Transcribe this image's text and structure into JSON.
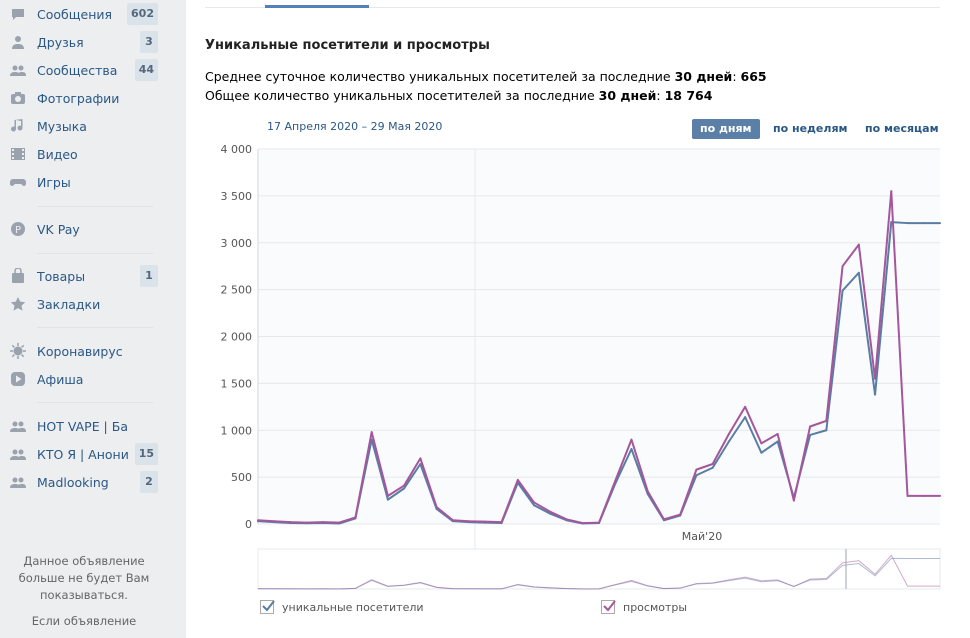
{
  "sidebar": {
    "items": [
      {
        "icon": "chat-bubble-icon",
        "label": "Сообщения",
        "count": "602"
      },
      {
        "icon": "user-icon",
        "label": "Друзья",
        "count": "3"
      },
      {
        "icon": "users-icon",
        "label": "Сообщества",
        "count": "44"
      },
      {
        "icon": "camera-icon",
        "label": "Фотографии",
        "count": ""
      },
      {
        "icon": "music-note-icon",
        "label": "Музыка",
        "count": ""
      },
      {
        "icon": "film-icon",
        "label": "Видео",
        "count": ""
      },
      {
        "icon": "gamepad-icon",
        "label": "Игры",
        "count": ""
      },
      {
        "icon": "vkpay-icon",
        "label": "VK Pay",
        "count": ""
      },
      {
        "icon": "bag-icon",
        "label": "Товары",
        "count": "1"
      },
      {
        "icon": "star-icon",
        "label": "Закладки",
        "count": ""
      },
      {
        "icon": "virus-icon",
        "label": "Коронавирус",
        "count": ""
      },
      {
        "icon": "play-icon",
        "label": "Афиша",
        "count": ""
      },
      {
        "icon": "users-icon",
        "label": "HOT VAPE | Бара...",
        "count": ""
      },
      {
        "icon": "users-icon",
        "label": "КТО Я | Анони...",
        "count": "15"
      },
      {
        "icon": "users-icon",
        "label": "Madlooking",
        "count": "2"
      }
    ],
    "ad_hidden_text": "Данное объявление больше не будет Вам показываться.",
    "ad_more_text": "Если объявление"
  },
  "main": {
    "section_title": "Уникальные посетители и просмотры",
    "stat1_prefix": "Среднее суточное количество уникальных посетителей за последние ",
    "stat1_days": "30 дней",
    "stat1_value": "665",
    "stat2_prefix": "Общее количество уникальных посетителей за последние ",
    "stat2_days": "30 дней",
    "stat2_value": "18 764",
    "date_range": "17 Апреля 2020 – 29 Мая 2020",
    "period_buttons": [
      "по дням",
      "по неделям",
      "по месяцам"
    ],
    "legend": {
      "unique": "уникальные посетители",
      "views": "просмотры"
    },
    "colors": {
      "unique": "#597da3",
      "views": "#a4579d",
      "accent": "#5181b8"
    }
  },
  "chart_data": {
    "type": "line",
    "x_axis_label": "Май'20",
    "y_ticks": [
      "4 000",
      "3 500",
      "3 000",
      "2 500",
      "2 000",
      "1 500",
      "1 000",
      "500",
      "0"
    ],
    "ylim": [
      0,
      4000
    ],
    "x": [
      "17.04",
      "18.04",
      "19.04",
      "20.04",
      "21.04",
      "22.04",
      "23.04",
      "24.04",
      "25.04",
      "26.04",
      "27.04",
      "28.04",
      "29.04",
      "30.04",
      "01.05",
      "02.05",
      "03.05",
      "04.05",
      "05.05",
      "06.05",
      "07.05",
      "08.05",
      "09.05",
      "10.05",
      "11.05",
      "12.05",
      "13.05",
      "14.05",
      "15.05",
      "16.05",
      "17.05",
      "18.05",
      "19.05",
      "20.05",
      "21.05",
      "22.05",
      "23.05",
      "24.05",
      "25.05",
      "26.05",
      "27.05",
      "28.05",
      "29.05"
    ],
    "series": [
      {
        "name": "уникальные посетители",
        "values": [
          30,
          20,
          10,
          8,
          10,
          5,
          60,
          900,
          260,
          380,
          640,
          160,
          30,
          20,
          15,
          10,
          440,
          200,
          110,
          40,
          5,
          10,
          430,
          800,
          320,
          40,
          90,
          520,
          600,
          880,
          1140,
          760,
          880,
          280,
          950,
          1000,
          2490,
          2680,
          1380,
          3220,
          3210,
          3210,
          3210
        ]
      },
      {
        "name": "просмотры",
        "values": [
          40,
          30,
          20,
          15,
          20,
          15,
          70,
          980,
          300,
          410,
          700,
          180,
          40,
          30,
          25,
          20,
          470,
          230,
          130,
          50,
          10,
          15,
          460,
          900,
          350,
          50,
          100,
          580,
          640,
          960,
          1250,
          860,
          960,
          250,
          1040,
          1100,
          2750,
          2980,
          1550,
          3550,
          300,
          300,
          300
        ]
      }
    ]
  }
}
